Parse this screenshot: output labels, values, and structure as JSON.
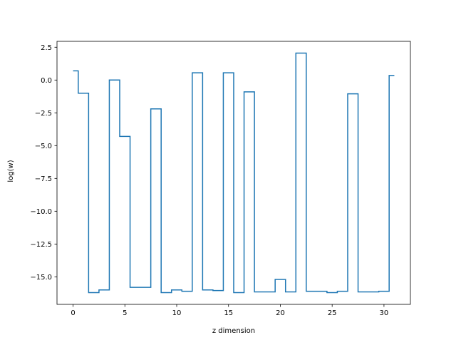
{
  "chart_data": {
    "type": "line",
    "drawstyle": "steps-mid",
    "title": "",
    "xlabel": "z dimension",
    "ylabel": "log(w)",
    "xlim": [
      -1.55,
      32.55
    ],
    "ylim": [
      -17.1,
      2.95
    ],
    "xticks": [
      0,
      5,
      10,
      15,
      20,
      25,
      30
    ],
    "xtick_labels": [
      "0",
      "5",
      "10",
      "15",
      "20",
      "25",
      "30"
    ],
    "yticks": [
      2.5,
      0.0,
      -2.5,
      -5.0,
      -7.5,
      -10.0,
      -12.5,
      -15.0
    ],
    "ytick_labels": [
      "2.5",
      "0.0",
      "−2.5",
      "−5.0",
      "−7.5",
      "−10.0",
      "−12.5",
      "−15.0"
    ],
    "grid": false,
    "color": "#1f77b4",
    "series": [
      {
        "x": [
          0,
          1,
          2,
          3,
          4,
          5,
          6,
          7,
          8,
          9,
          10,
          11,
          12,
          13,
          14,
          15,
          16,
          17,
          18,
          19,
          20,
          21,
          22,
          23,
          24,
          25,
          26,
          27,
          28,
          29,
          30,
          31
        ],
        "values": [
          0.7,
          -1.0,
          -16.2,
          -16.0,
          0.0,
          -4.3,
          -15.8,
          -15.8,
          -2.2,
          -16.2,
          -16.0,
          -16.1,
          0.55,
          -16.0,
          -16.05,
          0.55,
          -16.2,
          -0.9,
          -16.15,
          -16.15,
          -15.2,
          -16.15,
          2.05,
          -16.1,
          -16.1,
          -16.2,
          -16.1,
          -1.05,
          -16.15,
          -16.15,
          -16.1,
          0.35
        ]
      }
    ]
  }
}
